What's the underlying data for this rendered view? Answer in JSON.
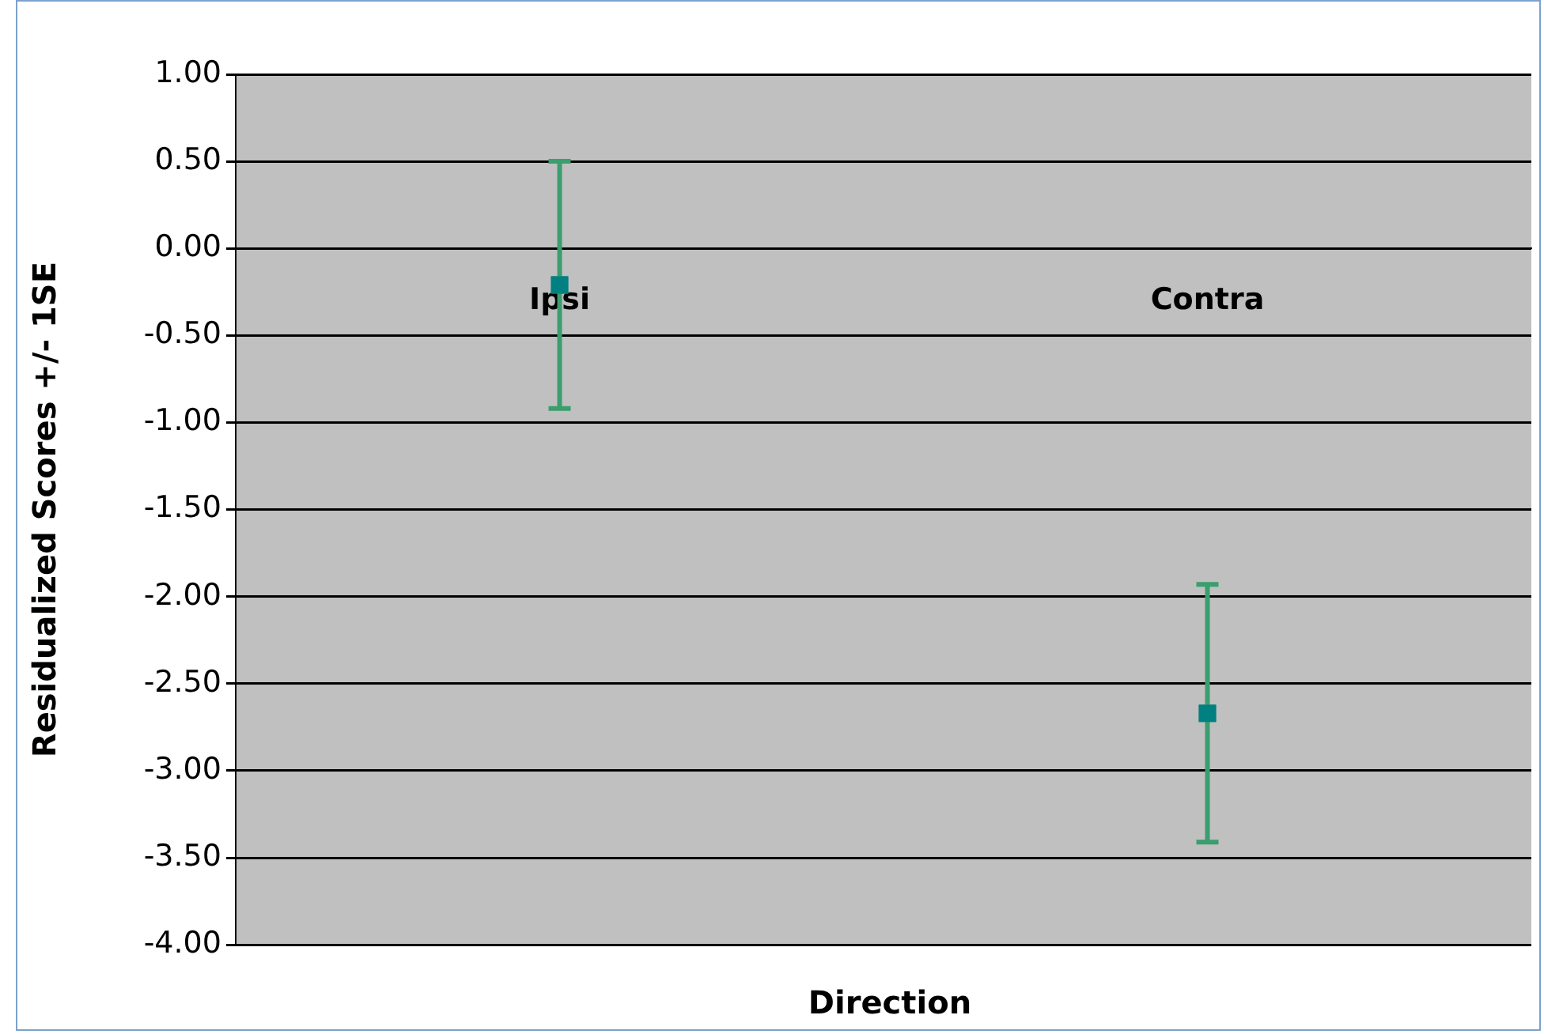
{
  "chart_data": {
    "type": "scatter",
    "xlabel": "Direction",
    "ylabel": "Residualized Scores +/- 1SE",
    "categories": [
      "Ipsi",
      "Contra"
    ],
    "series": [
      {
        "color": "#008080",
        "values": [
          -0.21,
          -2.67
        ],
        "errors": [
          0.71,
          0.74
        ]
      }
    ],
    "ylim": [
      -4,
      1
    ],
    "yticks": [
      {
        "value": 1,
        "label": "1.00"
      },
      {
        "value": 0.5,
        "label": "0.50"
      },
      {
        "value": 0,
        "label": "0.00"
      },
      {
        "value": -0.5,
        "label": "-0.50"
      },
      {
        "value": -1,
        "label": "-1.00"
      },
      {
        "value": -1.5,
        "label": "-1.50"
      },
      {
        "value": -2,
        "label": "-2.00"
      },
      {
        "value": -2.5,
        "label": "-2.50"
      },
      {
        "value": -3,
        "label": "-3.00"
      },
      {
        "value": -3.5,
        "label": "-3.50"
      },
      {
        "value": -4,
        "label": "-4.00"
      }
    ],
    "grid": "y",
    "legend": false,
    "marker": "square"
  }
}
